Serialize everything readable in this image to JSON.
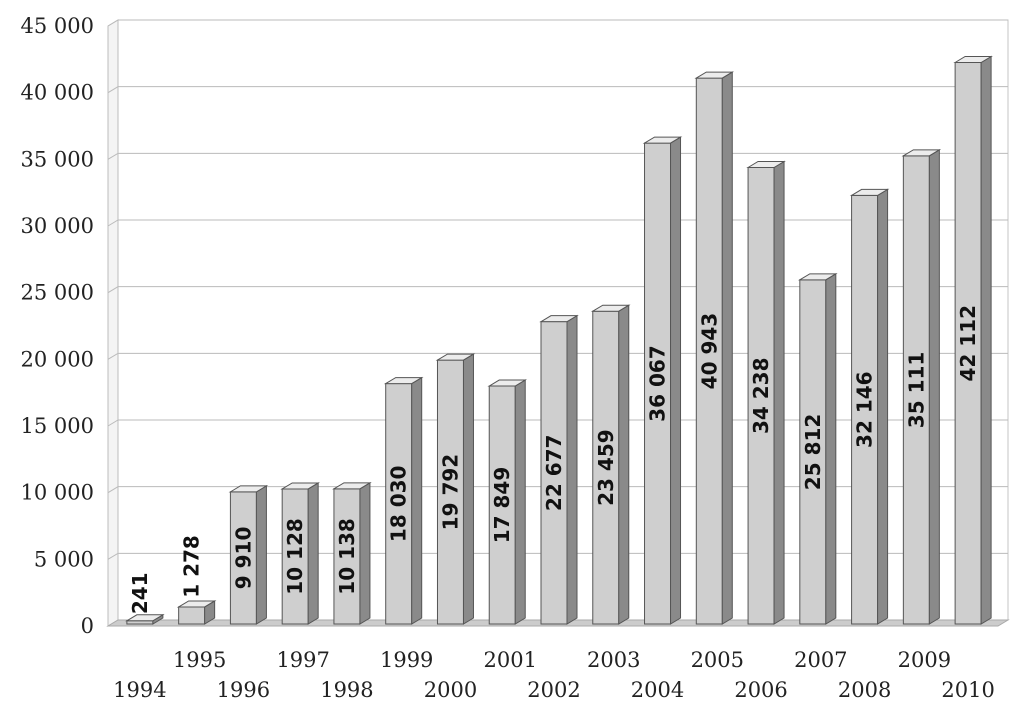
{
  "chart_data": {
    "type": "bar",
    "title": "",
    "xlabel": "",
    "ylabel": "",
    "ylim": [
      0,
      45000
    ],
    "grid": true,
    "legend": "none",
    "bar_style": "3d",
    "colors": {
      "bar_front": "#cfcfcf",
      "bar_side": "#8a8a8a",
      "bar_top": "#ececec",
      "grid": "#bbbbbb",
      "floor": "#cccccc"
    },
    "ytick_labels": [
      "0",
      "5 000",
      "10 000",
      "15 000",
      "20 000",
      "25 000",
      "30 000",
      "35 000",
      "40 000",
      "45 000"
    ],
    "categories": [
      "1994",
      "1995",
      "1996",
      "1997",
      "1998",
      "1999",
      "2000",
      "2001",
      "2002",
      "2003",
      "2004",
      "2005",
      "2006",
      "2007",
      "2008",
      "2009",
      "2010"
    ],
    "values": [
      241,
      1278,
      9910,
      10128,
      10138,
      18030,
      19792,
      17849,
      22677,
      23459,
      36067,
      40943,
      34238,
      25812,
      32146,
      35111,
      42112
    ],
    "value_labels": [
      "241",
      "1 278",
      "9 910",
      "10 128",
      "10 138",
      "18 030",
      "19 792",
      "17 849",
      "22 677",
      "23 459",
      "36 067",
      "40 943",
      "34 238",
      "25 812",
      "32 146",
      "35 111",
      "42 112"
    ]
  }
}
